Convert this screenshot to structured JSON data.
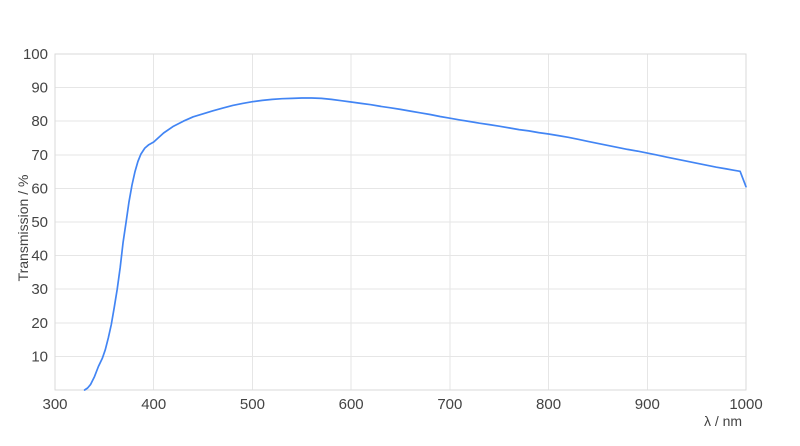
{
  "chart_data": {
    "type": "line",
    "xlabel": "λ / nm",
    "ylabel": "Transmission / %",
    "xlim": [
      300,
      1000
    ],
    "ylim": [
      0,
      100
    ],
    "x_ticks": [
      300,
      400,
      500,
      600,
      700,
      800,
      900,
      1000
    ],
    "y_ticks": [
      10,
      20,
      30,
      40,
      50,
      60,
      70,
      80,
      90,
      100
    ],
    "grid": true,
    "colors": {
      "line": "#4285f4",
      "grid": "#e6e6e6",
      "frame": "#d9d9d9",
      "text": "#444444",
      "background": "#ffffff"
    },
    "series": [
      {
        "name": "Transmission",
        "color": "#4285f4",
        "points": [
          [
            330,
            0
          ],
          [
            333,
            0.6
          ],
          [
            336,
            1.6
          ],
          [
            340,
            4
          ],
          [
            344,
            7
          ],
          [
            348,
            9.5
          ],
          [
            351,
            12
          ],
          [
            354,
            15.5
          ],
          [
            357,
            19.5
          ],
          [
            360,
            24.5
          ],
          [
            363,
            30
          ],
          [
            366,
            36.5
          ],
          [
            369,
            44
          ],
          [
            372,
            50
          ],
          [
            375,
            56
          ],
          [
            378,
            61
          ],
          [
            381,
            65
          ],
          [
            384,
            68
          ],
          [
            387,
            70.2
          ],
          [
            391,
            72
          ],
          [
            395,
            73
          ],
          [
            400,
            73.8
          ],
          [
            410,
            76.5
          ],
          [
            420,
            78.5
          ],
          [
            430,
            80
          ],
          [
            440,
            81.3
          ],
          [
            450,
            82.2
          ],
          [
            460,
            83.1
          ],
          [
            470,
            83.9
          ],
          [
            480,
            84.7
          ],
          [
            490,
            85.3
          ],
          [
            500,
            85.8
          ],
          [
            510,
            86.2
          ],
          [
            520,
            86.5
          ],
          [
            530,
            86.7
          ],
          [
            540,
            86.8
          ],
          [
            550,
            86.9
          ],
          [
            560,
            86.9
          ],
          [
            570,
            86.8
          ],
          [
            580,
            86.5
          ],
          [
            590,
            86.1
          ],
          [
            600,
            85.7
          ],
          [
            610,
            85.3
          ],
          [
            620,
            84.9
          ],
          [
            630,
            84.4
          ],
          [
            640,
            84.0
          ],
          [
            650,
            83.5
          ],
          [
            660,
            83.0
          ],
          [
            670,
            82.5
          ],
          [
            680,
            82.0
          ],
          [
            690,
            81.4
          ],
          [
            700,
            80.9
          ],
          [
            710,
            80.4
          ],
          [
            720,
            79.9
          ],
          [
            730,
            79.4
          ],
          [
            740,
            79.0
          ],
          [
            750,
            78.5
          ],
          [
            760,
            78.0
          ],
          [
            770,
            77.5
          ],
          [
            780,
            77.1
          ],
          [
            790,
            76.6
          ],
          [
            800,
            76.2
          ],
          [
            810,
            75.7
          ],
          [
            820,
            75.2
          ],
          [
            830,
            74.6
          ],
          [
            840,
            74.0
          ],
          [
            850,
            73.4
          ],
          [
            860,
            72.8
          ],
          [
            870,
            72.2
          ],
          [
            880,
            71.6
          ],
          [
            890,
            71.1
          ],
          [
            900,
            70.5
          ],
          [
            910,
            69.9
          ],
          [
            920,
            69.3
          ],
          [
            930,
            68.7
          ],
          [
            940,
            68.1
          ],
          [
            950,
            67.5
          ],
          [
            960,
            66.9
          ],
          [
            970,
            66.3
          ],
          [
            980,
            65.8
          ],
          [
            988,
            65.4
          ],
          [
            994,
            65.1
          ],
          [
            1000,
            60.5
          ]
        ]
      }
    ]
  }
}
